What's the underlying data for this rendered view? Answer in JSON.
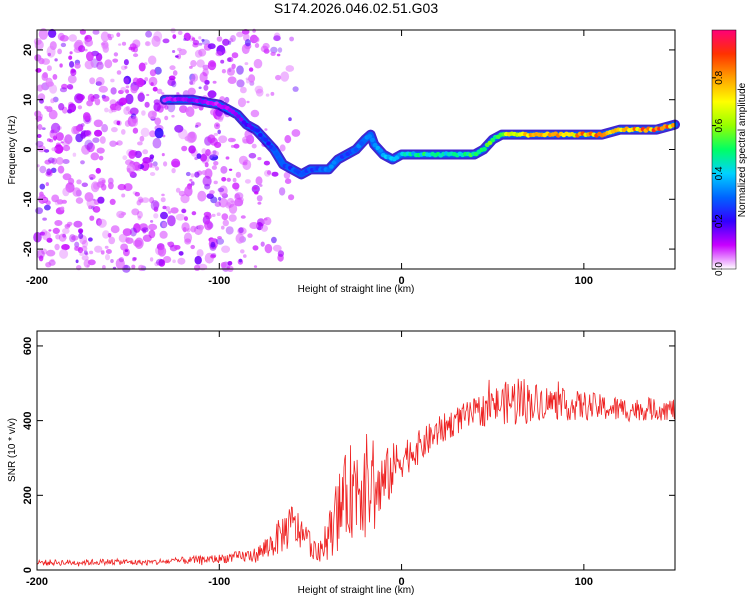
{
  "figure": {
    "title": "S174.2026.046.02.51.G03"
  },
  "chart_data": [
    {
      "type": "heatmap",
      "xlabel": "Height of straight line (km)",
      "ylabel": "Frequency (Hz)",
      "xlim": [
        -200,
        150
      ],
      "ylim": [
        -24,
        24
      ],
      "xticks": [
        -200,
        -100,
        0,
        100
      ],
      "xtick_labels": [
        "-200",
        "-100",
        "0",
        "100"
      ],
      "yticks": [
        -20,
        -10,
        0,
        10,
        20
      ],
      "ytick_labels": [
        "-20",
        "-10",
        "0",
        "10",
        "20"
      ],
      "colorbar": {
        "label": "Normalized spectral amplitude",
        "range": [
          0,
          1
        ],
        "ticks": [
          0,
          0.2,
          0.4,
          0.6,
          0.8
        ],
        "tick_labels": [
          "0.0",
          "0.2",
          "0.4",
          "0.6",
          "0.8"
        ],
        "stops": [
          "#ffffff",
          "#c800ff",
          "#3200ff",
          "#0064ff",
          "#00d2ff",
          "#00ff64",
          "#96ff00",
          "#ffff00",
          "#ffa000",
          "#ff3200",
          "#ff0078"
        ]
      },
      "ridge": {
        "x": [
          -130,
          -115,
          -100,
          -90,
          -85,
          -80,
          -75,
          -70,
          -65,
          -60,
          -55,
          -50,
          -45,
          -40,
          -35,
          -30,
          -25,
          -20,
          -17,
          -15,
          -10,
          -5,
          0,
          10,
          20,
          30,
          40,
          45,
          50,
          55,
          60,
          70,
          80,
          90,
          100,
          110,
          120,
          130,
          140,
          150
        ],
        "y": [
          10,
          10,
          9,
          7,
          5,
          4,
          2,
          0,
          -3,
          -4,
          -5,
          -4,
          -4,
          -4,
          -2,
          -1,
          0,
          2,
          3,
          1,
          -1,
          -2,
          -1,
          -1,
          -1,
          -1,
          -1,
          0,
          2,
          3,
          3,
          3,
          3,
          3,
          3,
          3,
          4,
          4,
          4,
          5
        ],
        "amplitude": [
          0.1,
          0.15,
          0.1,
          0.15,
          0.2,
          0.25,
          0.25,
          0.3,
          0.3,
          0.3,
          0.35,
          0.3,
          0.3,
          0.35,
          0.3,
          0.3,
          0.35,
          0.35,
          0.45,
          0.4,
          0.4,
          0.45,
          0.45,
          0.5,
          0.5,
          0.5,
          0.55,
          0.6,
          0.6,
          0.65,
          0.75,
          0.8,
          0.8,
          0.8,
          0.85,
          0.85,
          0.9,
          0.9,
          0.9,
          0.9
        ]
      }
    },
    {
      "type": "line",
      "xlabel": "Height of straight line (km)",
      "ylabel": "SNR (10 * v/v)",
      "xlim": [
        -200,
        150
      ],
      "ylim": [
        0,
        640
      ],
      "xticks": [
        -200,
        -100,
        0,
        100
      ],
      "xtick_labels": [
        "-200",
        "-100",
        "0",
        "100"
      ],
      "yticks": [
        0,
        200,
        400,
        600
      ],
      "ytick_labels": [
        "0",
        "200",
        "400",
        "600"
      ],
      "color": "#ee2222",
      "series": [
        {
          "name": "SNR",
          "x": [
            -200,
            -180,
            -160,
            -140,
            -120,
            -100,
            -90,
            -80,
            -75,
            -70,
            -65,
            -60,
            -55,
            -50,
            -45,
            -40,
            -35,
            -30,
            -25,
            -20,
            -15,
            -10,
            -5,
            0,
            10,
            20,
            30,
            40,
            50,
            60,
            64,
            70,
            80,
            90,
            100,
            110,
            120,
            130,
            140,
            150
          ],
          "y": [
            20,
            20,
            22,
            20,
            25,
            30,
            35,
            40,
            55,
            75,
            100,
            120,
            100,
            70,
            40,
            90,
            150,
            200,
            230,
            240,
            200,
            230,
            270,
            300,
            330,
            370,
            400,
            420,
            440,
            450,
            455,
            450,
            450,
            440,
            440,
            435,
            430,
            430,
            430,
            430
          ],
          "noise_amplitude": [
            8,
            8,
            8,
            8,
            10,
            12,
            15,
            20,
            30,
            40,
            55,
            60,
            50,
            35,
            30,
            60,
            100,
            120,
            140,
            140,
            110,
            90,
            70,
            55,
            45,
            40,
            38,
            40,
            50,
            60,
            80,
            55,
            45,
            40,
            40,
            35,
            35,
            30,
            30,
            30
          ]
        }
      ]
    }
  ]
}
